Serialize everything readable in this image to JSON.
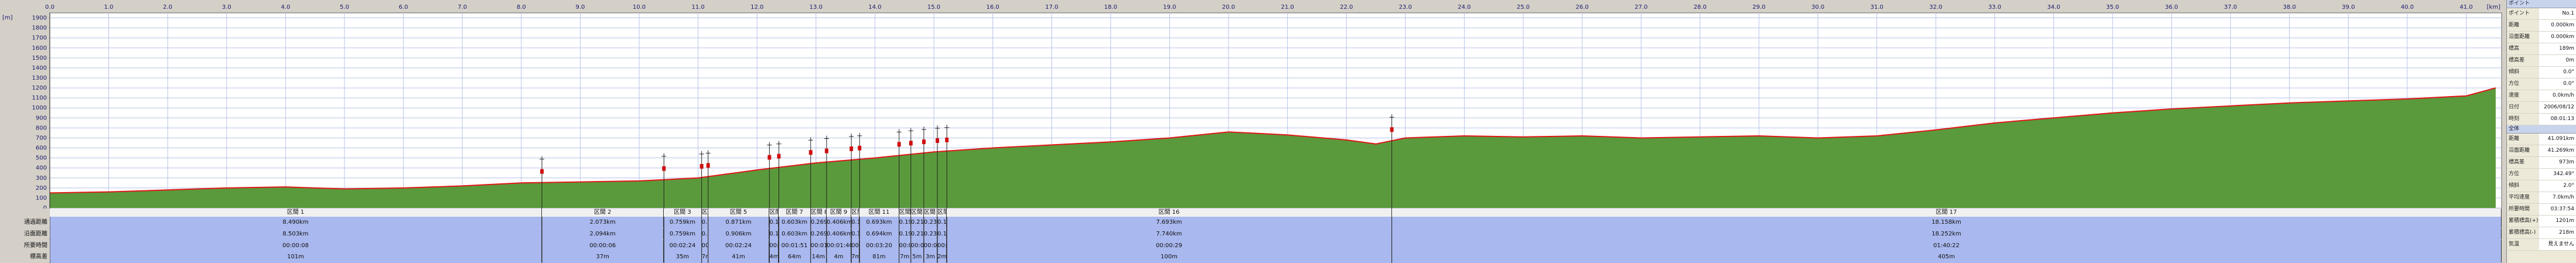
{
  "chart_data": {
    "type": "area",
    "xlabel": "[km]",
    "ylabel": "[m]",
    "x": [
      0,
      1,
      2,
      3,
      4,
      5,
      6,
      7,
      8,
      9,
      10,
      11,
      12,
      13,
      14,
      15,
      16,
      17,
      18,
      19,
      20,
      21,
      22,
      22.5,
      23,
      24,
      25,
      26,
      27,
      28,
      29,
      30,
      31,
      32,
      33,
      34,
      35,
      36,
      37,
      38,
      39,
      40,
      41,
      41.5
    ],
    "values": [
      150,
      160,
      180,
      200,
      210,
      190,
      200,
      220,
      250,
      260,
      270,
      300,
      380,
      450,
      500,
      560,
      600,
      630,
      660,
      700,
      760,
      730,
      680,
      640,
      700,
      720,
      710,
      720,
      700,
      710,
      720,
      700,
      720,
      780,
      850,
      900,
      950,
      990,
      1020,
      1050,
      1070,
      1090,
      1120,
      1200
    ],
    "line_color": "#e01818",
    "fill_color": "#5b9a3c",
    "xlim": [
      0,
      41.6
    ],
    "ylim": [
      0,
      1950
    ],
    "xticks": [
      {
        "value": 0,
        "label": "0.0"
      },
      {
        "value": 1,
        "label": "1.0"
      },
      {
        "value": 2,
        "label": "2.0"
      },
      {
        "value": 3,
        "label": "3.0"
      },
      {
        "value": 4,
        "label": "4.0"
      },
      {
        "value": 5,
        "label": "5.0"
      },
      {
        "value": 6,
        "label": "6.0"
      },
      {
        "value": 7,
        "label": "7.0"
      },
      {
        "value": 8,
        "label": "8.0"
      },
      {
        "value": 9,
        "label": "9.0"
      },
      {
        "value": 10,
        "label": "10.0"
      },
      {
        "value": 11,
        "label": "11.0"
      },
      {
        "value": 12,
        "label": "12.0"
      },
      {
        "value": 13,
        "label": "13.0"
      },
      {
        "value": 14,
        "label": "14.0"
      },
      {
        "value": 15,
        "label": "15.0"
      },
      {
        "value": 16,
        "label": "16.0"
      },
      {
        "value": 17,
        "label": "17.0"
      },
      {
        "value": 18,
        "label": "18.0"
      },
      {
        "value": 19,
        "label": "19.0"
      },
      {
        "value": 20,
        "label": "20.0"
      },
      {
        "value": 21,
        "label": "21.0"
      },
      {
        "value": 22,
        "label": "22.0"
      },
      {
        "value": 23,
        "label": "23.0"
      },
      {
        "value": 24,
        "label": "24.0"
      },
      {
        "value": 25,
        "label": "25.0"
      },
      {
        "value": 26,
        "label": "26.0"
      },
      {
        "value": 27,
        "label": "27.0"
      },
      {
        "value": 28,
        "label": "28.0"
      },
      {
        "value": 29,
        "label": "29.0"
      },
      {
        "value": 30,
        "label": "30.0"
      },
      {
        "value": 31,
        "label": "31.0"
      },
      {
        "value": 32,
        "label": "32.0"
      },
      {
        "value": 33,
        "label": "33.0"
      },
      {
        "value": 34,
        "label": "34.0"
      },
      {
        "value": 35,
        "label": "35.0"
      },
      {
        "value": 36,
        "label": "36.0"
      },
      {
        "value": 37,
        "label": "37.0"
      },
      {
        "value": 38,
        "label": "38.0"
      },
      {
        "value": 39,
        "label": "39.0"
      },
      {
        "value": 40,
        "label": "40.0"
      },
      {
        "value": 41,
        "label": "41.0"
      }
    ],
    "yticks": [
      0,
      100,
      200,
      300,
      400,
      500,
      600,
      700,
      800,
      900,
      1000,
      1100,
      1200,
      1300,
      1400,
      1500,
      1600,
      1700,
      1800,
      1900
    ],
    "grid": true,
    "markers": [
      8.35,
      10.42,
      11.06,
      11.17,
      12.21,
      12.37,
      12.91,
      13.18,
      13.6,
      13.74,
      14.41,
      14.61,
      14.83,
      15.06,
      15.22,
      22.77
    ]
  },
  "sections": {
    "row_labels": [
      "通過距離",
      "沿面距離",
      "所要時間",
      "標高差"
    ],
    "items": [
      {
        "name": "区間 1",
        "values": [
          "8.490km",
          "8.503km",
          "00:00:08",
          "101m"
        ]
      },
      {
        "name": "区間 2",
        "values": [
          "2.073km",
          "2.094km",
          "00:00:06",
          "37m"
        ]
      },
      {
        "name": "区間 3",
        "values": [
          "0.759km",
          "0.759km",
          "00:02:24",
          "35m"
        ]
      },
      {
        "name": "区間 4",
        "values": [
          "0.101km",
          "0.101km",
          "00:00:24",
          "7m"
        ]
      },
      {
        "name": "区間 5",
        "values": [
          "0.871km",
          "0.906km",
          "00:02:24",
          "41m"
        ]
      },
      {
        "name": "区間 6",
        "values": [
          "0.155km",
          "0.155km",
          "00:00:40",
          "4m"
        ]
      },
      {
        "name": "区間 7",
        "values": [
          "0.603km",
          "0.603km",
          "00:01:51",
          "64m"
        ]
      },
      {
        "name": "区間 8",
        "values": [
          "0.269km",
          "0.269km",
          "00:01:40",
          "14m"
        ]
      },
      {
        "name": "区間 9",
        "values": [
          "0.406km",
          "0.406km",
          "00:01:40",
          "4m"
        ]
      },
      {
        "name": "区間 10",
        "values": [
          "0.134km",
          "0.134km",
          "00:00:20",
          "7m"
        ]
      },
      {
        "name": "区間 11",
        "values": [
          "0.693km",
          "0.694km",
          "00:03:20",
          "81m"
        ]
      },
      {
        "name": "区間 12",
        "values": [
          "0.193km",
          "0.193km",
          "00:00:40",
          "7m"
        ]
      },
      {
        "name": "区間 13",
        "values": [
          "0.218km",
          "0.218km",
          "00:01:11",
          "5m"
        ]
      },
      {
        "name": "区間 14",
        "values": [
          "0.237km",
          "0.237km",
          "00:00:14",
          "3m"
        ]
      },
      {
        "name": "区間 15",
        "values": [
          "0.160km",
          "0.160km",
          "00:00:11",
          "2m"
        ]
      },
      {
        "name": "区間 16",
        "values": [
          "7.693km",
          "7.740km",
          "00:00:29",
          "100m"
        ]
      },
      {
        "name": "区間 17",
        "values": [
          "18.158km",
          "18.252km",
          "01:40:22",
          "405m"
        ]
      }
    ]
  },
  "panel": {
    "point": {
      "title": "ポイント",
      "rows": [
        [
          "ポイント",
          "No.1"
        ],
        [
          "距離",
          "0.000km"
        ],
        [
          "沿面距離",
          "0.000km"
        ],
        [
          "標高",
          "189m"
        ],
        [
          "標高差",
          "0m"
        ],
        [
          "傾斜",
          "0.0°"
        ],
        [
          "方位",
          "0.0°"
        ],
        [
          "速度",
          "0.0km/h"
        ],
        [
          "日付",
          "2006/08/12"
        ],
        [
          "時刻",
          "08:01:13"
        ]
      ]
    },
    "total": {
      "title": "全体",
      "rows": [
        [
          "距離",
          "41.091km"
        ],
        [
          "沿面距離",
          "41.269km"
        ],
        [
          "標高差",
          "973m"
        ],
        [
          "方位",
          "342.49°"
        ],
        [
          "傾斜",
          "2.0°"
        ],
        [
          "平均速度",
          "7.0km/h"
        ],
        [
          "所要時間",
          "03:37:54"
        ],
        [
          "累積標高(+)",
          "1201m"
        ],
        [
          "累積標高(-)",
          "218m"
        ],
        [
          "気温",
          "見えません"
        ]
      ]
    }
  }
}
